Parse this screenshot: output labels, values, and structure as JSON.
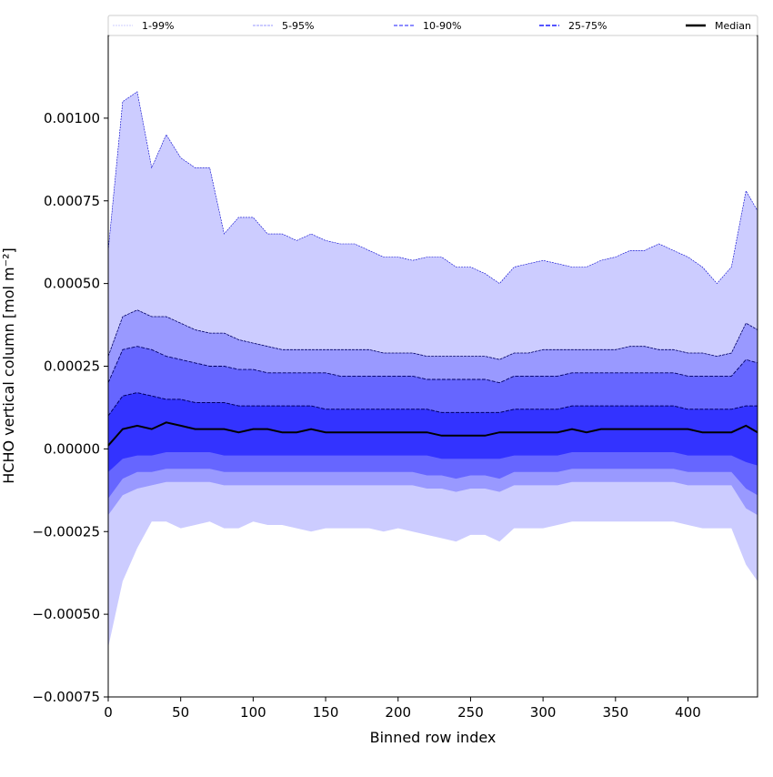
{
  "chart_data": {
    "type": "area",
    "title": "",
    "xlabel": "Binned row index",
    "ylabel": "HCHO vertical column [mol m⁻²]",
    "xlim": [
      0,
      448
    ],
    "ylim": [
      -0.00075,
      0.00125
    ],
    "xticks": [
      0,
      50,
      100,
      150,
      200,
      250,
      300,
      350,
      400
    ],
    "xtick_labels": [
      "0",
      "50",
      "100",
      "150",
      "200",
      "250",
      "300",
      "350",
      "400"
    ],
    "yticks": [
      -0.00075,
      -0.0005,
      -0.00025,
      0,
      0.00025,
      0.0005,
      0.00075,
      0.001
    ],
    "ytick_labels": [
      "−0.00075",
      "−0.00050",
      "−0.00025",
      "0.00000",
      "0.00025",
      "0.00050",
      "0.00075",
      "0.00100"
    ],
    "legend": {
      "placement": "top",
      "entries": [
        "1-99%",
        "5-95%",
        "10-90%",
        "25-75%",
        "Median"
      ]
    },
    "colors": {
      "band_1_99": "#ccccff",
      "band_5_95": "#9999ff",
      "band_10_90": "#6666ff",
      "band_25_75": "#3333ff",
      "edge": "#0000cc",
      "median": "#000000"
    },
    "x": [
      0,
      10,
      20,
      30,
      40,
      50,
      60,
      70,
      80,
      90,
      100,
      110,
      120,
      130,
      140,
      150,
      160,
      170,
      180,
      190,
      200,
      210,
      220,
      230,
      240,
      250,
      260,
      270,
      280,
      290,
      300,
      310,
      320,
      330,
      340,
      350,
      360,
      370,
      380,
      390,
      400,
      410,
      420,
      430,
      440,
      448
    ],
    "series": [
      {
        "name": "p99",
        "values": [
          0.0006,
          0.00105,
          0.00108,
          0.00085,
          0.00095,
          0.00088,
          0.00085,
          0.00085,
          0.00065,
          0.0007,
          0.0007,
          0.00065,
          0.00065,
          0.00063,
          0.00065,
          0.00063,
          0.00062,
          0.00062,
          0.0006,
          0.00058,
          0.00058,
          0.00057,
          0.00058,
          0.00058,
          0.00055,
          0.00055,
          0.00053,
          0.0005,
          0.00055,
          0.00056,
          0.00057,
          0.00056,
          0.00055,
          0.00055,
          0.00057,
          0.00058,
          0.0006,
          0.0006,
          0.00062,
          0.0006,
          0.00058,
          0.00055,
          0.0005,
          0.00055,
          0.00078,
          0.00072
        ]
      },
      {
        "name": "p95",
        "values": [
          0.00028,
          0.0004,
          0.00042,
          0.0004,
          0.0004,
          0.00038,
          0.00036,
          0.00035,
          0.00035,
          0.00033,
          0.00032,
          0.00031,
          0.0003,
          0.0003,
          0.0003,
          0.0003,
          0.0003,
          0.0003,
          0.0003,
          0.00029,
          0.00029,
          0.00029,
          0.00028,
          0.00028,
          0.00028,
          0.00028,
          0.00028,
          0.00027,
          0.00029,
          0.00029,
          0.0003,
          0.0003,
          0.0003,
          0.0003,
          0.0003,
          0.0003,
          0.00031,
          0.00031,
          0.0003,
          0.0003,
          0.00029,
          0.00029,
          0.00028,
          0.00029,
          0.00038,
          0.00036
        ]
      },
      {
        "name": "p90",
        "values": [
          0.0002,
          0.0003,
          0.00031,
          0.0003,
          0.00028,
          0.00027,
          0.00026,
          0.00025,
          0.00025,
          0.00024,
          0.00024,
          0.00023,
          0.00023,
          0.00023,
          0.00023,
          0.00023,
          0.00022,
          0.00022,
          0.00022,
          0.00022,
          0.00022,
          0.00022,
          0.00021,
          0.00021,
          0.00021,
          0.00021,
          0.00021,
          0.0002,
          0.00022,
          0.00022,
          0.00022,
          0.00022,
          0.00023,
          0.00023,
          0.00023,
          0.00023,
          0.00023,
          0.00023,
          0.00023,
          0.00023,
          0.00022,
          0.00022,
          0.00022,
          0.00022,
          0.00027,
          0.00026
        ]
      },
      {
        "name": "p75",
        "values": [
          0.0001,
          0.00016,
          0.00017,
          0.00016,
          0.00015,
          0.00015,
          0.00014,
          0.00014,
          0.00014,
          0.00013,
          0.00013,
          0.00013,
          0.00013,
          0.00013,
          0.00013,
          0.00012,
          0.00012,
          0.00012,
          0.00012,
          0.00012,
          0.00012,
          0.00012,
          0.00012,
          0.00011,
          0.00011,
          0.00011,
          0.00011,
          0.00011,
          0.00012,
          0.00012,
          0.00012,
          0.00012,
          0.00013,
          0.00013,
          0.00013,
          0.00013,
          0.00013,
          0.00013,
          0.00013,
          0.00013,
          0.00012,
          0.00012,
          0.00012,
          0.00012,
          0.00013,
          0.00013
        ]
      },
      {
        "name": "median",
        "values": [
          1e-05,
          6e-05,
          7e-05,
          6e-05,
          8e-05,
          7e-05,
          6e-05,
          6e-05,
          6e-05,
          5e-05,
          6e-05,
          6e-05,
          5e-05,
          5e-05,
          6e-05,
          5e-05,
          5e-05,
          5e-05,
          5e-05,
          5e-05,
          5e-05,
          5e-05,
          5e-05,
          4e-05,
          4e-05,
          4e-05,
          4e-05,
          5e-05,
          5e-05,
          5e-05,
          5e-05,
          5e-05,
          6e-05,
          5e-05,
          6e-05,
          6e-05,
          6e-05,
          6e-05,
          6e-05,
          6e-05,
          6e-05,
          5e-05,
          5e-05,
          5e-05,
          7e-05,
          5e-05
        ]
      },
      {
        "name": "p25",
        "values": [
          -7e-05,
          -3e-05,
          -2e-05,
          -2e-05,
          -1e-05,
          -1e-05,
          -1e-05,
          -1e-05,
          -2e-05,
          -2e-05,
          -2e-05,
          -2e-05,
          -2e-05,
          -2e-05,
          -2e-05,
          -2e-05,
          -2e-05,
          -2e-05,
          -2e-05,
          -2e-05,
          -2e-05,
          -2e-05,
          -2e-05,
          -3e-05,
          -3e-05,
          -3e-05,
          -3e-05,
          -3e-05,
          -2e-05,
          -2e-05,
          -2e-05,
          -2e-05,
          -1e-05,
          -1e-05,
          -1e-05,
          -1e-05,
          -1e-05,
          -1e-05,
          -1e-05,
          -1e-05,
          -2e-05,
          -2e-05,
          -2e-05,
          -2e-05,
          -4e-05,
          -5e-05
        ]
      },
      {
        "name": "p10",
        "values": [
          -0.00015,
          -9e-05,
          -7e-05,
          -7e-05,
          -6e-05,
          -6e-05,
          -6e-05,
          -6e-05,
          -7e-05,
          -7e-05,
          -7e-05,
          -7e-05,
          -7e-05,
          -7e-05,
          -7e-05,
          -7e-05,
          -7e-05,
          -7e-05,
          -7e-05,
          -7e-05,
          -7e-05,
          -7e-05,
          -8e-05,
          -8e-05,
          -9e-05,
          -8e-05,
          -8e-05,
          -9e-05,
          -7e-05,
          -7e-05,
          -7e-05,
          -7e-05,
          -6e-05,
          -6e-05,
          -6e-05,
          -6e-05,
          -6e-05,
          -6e-05,
          -6e-05,
          -6e-05,
          -7e-05,
          -7e-05,
          -7e-05,
          -7e-05,
          -0.00012,
          -0.00014
        ]
      },
      {
        "name": "p5",
        "values": [
          -0.0002,
          -0.00014,
          -0.00012,
          -0.00011,
          -0.0001,
          -0.0001,
          -0.0001,
          -0.0001,
          -0.00011,
          -0.00011,
          -0.00011,
          -0.00011,
          -0.00011,
          -0.00011,
          -0.00011,
          -0.00011,
          -0.00011,
          -0.00011,
          -0.00011,
          -0.00011,
          -0.00011,
          -0.00011,
          -0.00012,
          -0.00012,
          -0.00013,
          -0.00012,
          -0.00012,
          -0.00013,
          -0.00011,
          -0.00011,
          -0.00011,
          -0.00011,
          -0.0001,
          -0.0001,
          -0.0001,
          -0.0001,
          -0.0001,
          -0.0001,
          -0.0001,
          -0.0001,
          -0.00011,
          -0.00011,
          -0.00011,
          -0.00011,
          -0.00018,
          -0.0002
        ]
      },
      {
        "name": "p1",
        "values": [
          -0.0006,
          -0.0004,
          -0.0003,
          -0.00022,
          -0.00022,
          -0.00024,
          -0.00023,
          -0.00022,
          -0.00024,
          -0.00024,
          -0.00022,
          -0.00023,
          -0.00023,
          -0.00024,
          -0.00025,
          -0.00024,
          -0.00024,
          -0.00024,
          -0.00024,
          -0.00025,
          -0.00024,
          -0.00025,
          -0.00026,
          -0.00027,
          -0.00028,
          -0.00026,
          -0.00026,
          -0.00028,
          -0.00024,
          -0.00024,
          -0.00024,
          -0.00023,
          -0.00022,
          -0.00022,
          -0.00022,
          -0.00022,
          -0.00022,
          -0.00022,
          -0.00022,
          -0.00022,
          -0.00023,
          -0.00024,
          -0.00024,
          -0.00024,
          -0.00035,
          -0.0004
        ]
      }
    ]
  }
}
